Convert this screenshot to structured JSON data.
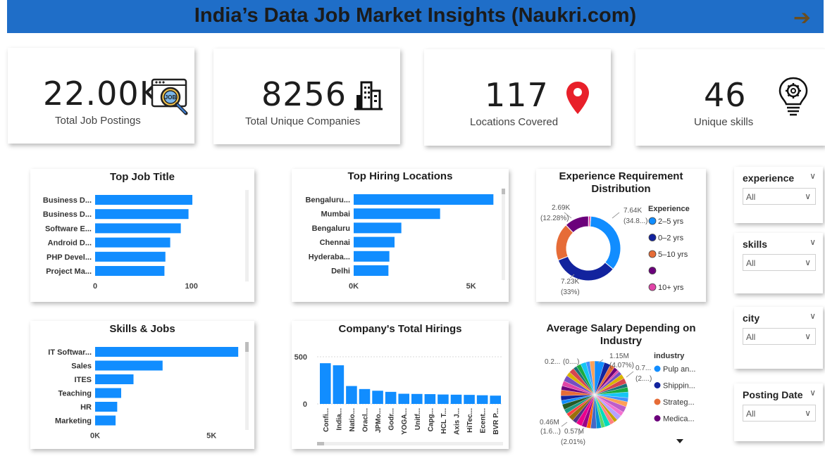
{
  "header": {
    "title": "India’s Data Job Market Insights (Naukri.com)",
    "arrow_icon": "arrow-right-icon"
  },
  "kpis": [
    {
      "value": "22.00K",
      "label": "Total Job Postings",
      "icon": "job-search-icon"
    },
    {
      "value": "8256",
      "label": "Total Unique Companies",
      "icon": "building-icon"
    },
    {
      "value": "117",
      "label": "Locations Covered",
      "icon": "location-pin-icon"
    },
    {
      "value": "46",
      "label": "Unique skills",
      "icon": "lightbulb-gear-icon"
    }
  ],
  "slicers": [
    {
      "title": "experience",
      "value": "All"
    },
    {
      "title": "skills",
      "value": "All"
    },
    {
      "title": "city",
      "value": "All"
    },
    {
      "title": "Posting Date",
      "value": "All"
    }
  ],
  "colors": {
    "bar": "#118dff",
    "banner": "#1f6ec8",
    "pin": "#e8202a"
  },
  "chart_data": [
    {
      "id": "top_job_title",
      "type": "bar",
      "orientation": "horizontal",
      "title": "Top Job Title",
      "categories": [
        "Business D...",
        "Business D...",
        "Software E...",
        "Android D...",
        "PHP Devel...",
        "Project Ma..."
      ],
      "values": [
        101,
        97,
        89,
        78,
        73,
        72
      ],
      "xlim": [
        0,
        120
      ],
      "xticks": [
        "0",
        "100"
      ],
      "xtick_values": [
        0,
        100
      ]
    },
    {
      "id": "top_hiring_locations",
      "type": "bar",
      "orientation": "horizontal",
      "title": "Top Hiring Locations",
      "categories": [
        "Bengaluru...",
        "Mumbai",
        "Bengaluru",
        "Chennai",
        "Hyderaba...",
        "Delhi"
      ],
      "values": [
        5950,
        3680,
        2030,
        1740,
        1520,
        1480
      ],
      "xlim": [
        0,
        6300
      ],
      "xticks": [
        "0K",
        "5K"
      ],
      "xtick_values": [
        0,
        5000
      ]
    },
    {
      "id": "experience_distribution",
      "type": "pie",
      "donut": true,
      "title": "Experience Requirement Distribution",
      "legend_title": "Experience",
      "legend_position": "right",
      "labels": [
        "2–5 yrs",
        "0–2 yrs",
        "5–10 yrs",
        "",
        "10+ yrs"
      ],
      "values": [
        34.8,
        33.0,
        18.8,
        12.28,
        1.12
      ],
      "colors": [
        "#118dff",
        "#12239e",
        "#e66c37",
        "#6b007b",
        "#e044a7"
      ],
      "annotations": [
        "7.64K",
        "(34.8...)",
        "7.23K",
        "(33%)",
        "2.69K",
        "(12.28%)"
      ]
    },
    {
      "id": "skills_jobs",
      "type": "bar",
      "orientation": "horizontal",
      "title": "Skills & Jobs",
      "categories": [
        "IT Softwar...",
        "Sales",
        "ITES",
        "Teaching",
        "HR",
        "Marketing"
      ],
      "values": [
        6150,
        2900,
        1650,
        1120,
        950,
        880
      ],
      "xlim": [
        0,
        6600
      ],
      "xticks": [
        "0K",
        "5K"
      ],
      "xtick_values": [
        0,
        5000
      ]
    },
    {
      "id": "company_total_hirings",
      "type": "bar",
      "orientation": "vertical",
      "title": "Company's Total Hirings",
      "categories": [
        "Confi...",
        "India...",
        "Natio...",
        "Oracl...",
        "JPMo...",
        "Godr...",
        "YOGA...",
        "Unitf...",
        "Capg...",
        "HCL T...",
        "Axis J...",
        "HiTec...",
        "Ecent...",
        "BVR P..."
      ],
      "values": [
        432,
        410,
        190,
        158,
        140,
        128,
        108,
        106,
        104,
        100,
        98,
        96,
        92,
        88
      ],
      "ylim": [
        0,
        560
      ],
      "yticks": [
        "0",
        "500"
      ],
      "ytick_values": [
        0,
        500
      ]
    },
    {
      "id": "avg_salary_industry",
      "type": "pie",
      "title": "Average Salary Depending on Industry",
      "legend_title": "industry",
      "legend_position": "right",
      "labels": [
        "Pulp an...",
        "Shippin...",
        "Strateg...",
        "Medica..."
      ],
      "colors": [
        "#118dff",
        "#12239e",
        "#e66c37",
        "#6b007b"
      ],
      "annotations": [
        "1.15M",
        "(4.07%)",
        "0.7...",
        "(2....)",
        "0.2...",
        "(0....)",
        "0.46M",
        "(1.6...)",
        "0.57M",
        "(2.01%)"
      ]
    }
  ]
}
